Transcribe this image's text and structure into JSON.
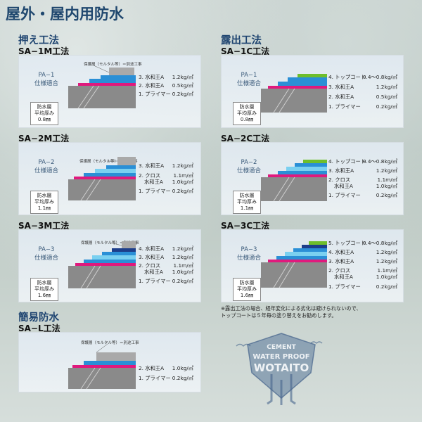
{
  "page_title": "屋外・屋内用防水",
  "sections": {
    "press": "押え工法",
    "exposed": "露出工法",
    "simple": "簡易防水"
  },
  "mortar_note": "保護層（モルタル等）＝別途工事",
  "panels": [
    {
      "id": "sa1m",
      "title": "SA−1M工法",
      "spec": [
        "PA−1",
        "仕様適合"
      ],
      "thick": [
        "防水層",
        "平均厚み",
        "0.8㎜"
      ],
      "layers": [
        {
          "label": "3. 水和王A",
          "value": "1.2kg/㎡"
        },
        {
          "label": "2. 水和王A",
          "value": "0.5kg/㎡"
        },
        {
          "label": "1. プライマー",
          "value": "0.2kg/㎡"
        }
      ]
    },
    {
      "id": "sa2m",
      "title": "SA−2M工法",
      "spec": [
        "PA−2",
        "仕様適合"
      ],
      "thick": [
        "防水層",
        "平均厚み",
        "1.1㎜"
      ],
      "layers": [
        {
          "label": "3. 水和王A",
          "value": "1.2kg/㎡"
        },
        {
          "label": "2. クロス",
          "value": "1.1m/㎡"
        },
        {
          "label": "水和王A",
          "value": "1.0kg/㎡"
        },
        {
          "label": "1. プライマー",
          "value": "0.2kg/㎡"
        }
      ]
    },
    {
      "id": "sa3m",
      "title": "SA−3M工法",
      "spec": [
        "PA−3",
        "仕様適合"
      ],
      "thick": [
        "防水層",
        "平均厚み",
        "1.6㎜"
      ],
      "layers": [
        {
          "label": "4. 水和王A",
          "value": "1.2kg/㎡"
        },
        {
          "label": "3. 水和王A",
          "value": "1.2kg/㎡"
        },
        {
          "label": "2. クロス",
          "value": "1.1m/㎡"
        },
        {
          "label": "水和王A",
          "value": "1.0kg/㎡"
        },
        {
          "label": "1. プライマー",
          "value": "0.2kg/㎡"
        }
      ]
    },
    {
      "id": "sal",
      "title": "SA−L工法",
      "layers": [
        {
          "label": "2. 水和王A",
          "value": "1.0kg/㎡"
        },
        {
          "label": "1. プライマー",
          "value": "0.2kg/㎡"
        }
      ]
    },
    {
      "id": "sa1c",
      "title": "SA−1C工法",
      "spec": [
        "PA−1",
        "仕様適合"
      ],
      "thick": [
        "防水層",
        "平均厚み",
        "0.8㎜"
      ],
      "layers": [
        {
          "label": "4. トップコート",
          "value": "0.4〜0.8kg/㎡"
        },
        {
          "label": "3. 水和王A",
          "value": "1.2kg/㎡"
        },
        {
          "label": "2. 水和王A",
          "value": "0.5kg/㎡"
        },
        {
          "label": "1. プライマー",
          "value": "0.2kg/㎡"
        }
      ]
    },
    {
      "id": "sa2c",
      "title": "SA−2C工法",
      "spec": [
        "PA−2",
        "仕様適合"
      ],
      "thick": [
        "防水層",
        "平均厚み",
        "1.1㎜"
      ],
      "layers": [
        {
          "label": "4. トップコート",
          "value": "0.4〜0.8kg/㎡"
        },
        {
          "label": "3. 水和王A",
          "value": "1.2kg/㎡"
        },
        {
          "label": "2. クロス",
          "value": "1.1m/㎡"
        },
        {
          "label": "水和王A",
          "value": "1.0kg/㎡"
        },
        {
          "label": "1. プライマー",
          "value": "0.2kg/㎡"
        }
      ]
    },
    {
      "id": "sa3c",
      "title": "SA−3C工法",
      "spec": [
        "PA−3",
        "仕様適合"
      ],
      "thick": [
        "防水層",
        "平均厚み",
        "1.6㎜"
      ],
      "layers": [
        {
          "label": "5. トップコート",
          "value": "0.4〜0.8kg/㎡"
        },
        {
          "label": "4. 水和王A",
          "value": "1.2kg/㎡"
        },
        {
          "label": "3. 水和王A",
          "value": "1.2kg/㎡"
        },
        {
          "label": "2. クロス",
          "value": "1.1m/㎡"
        },
        {
          "label": "水和王A",
          "value": "1.0kg/㎡"
        },
        {
          "label": "1. プライマー",
          "value": "0.2kg/㎡"
        }
      ]
    }
  ],
  "notes": [
    "※露出工法の場合、経年変化による劣化は避けられないので、",
    "トップコートは５年毎の塗り替えをお勧めします。"
  ],
  "logo": {
    "line1": "CEMENT",
    "line2": "WATER PROOF",
    "line3": "WOTAITO"
  },
  "colors": {
    "blue": "#2a8fd6",
    "magenta": "#e0197d",
    "dark": "#1d3e8a",
    "green": "#6fbe2b",
    "gray": "#a9a9a9"
  }
}
